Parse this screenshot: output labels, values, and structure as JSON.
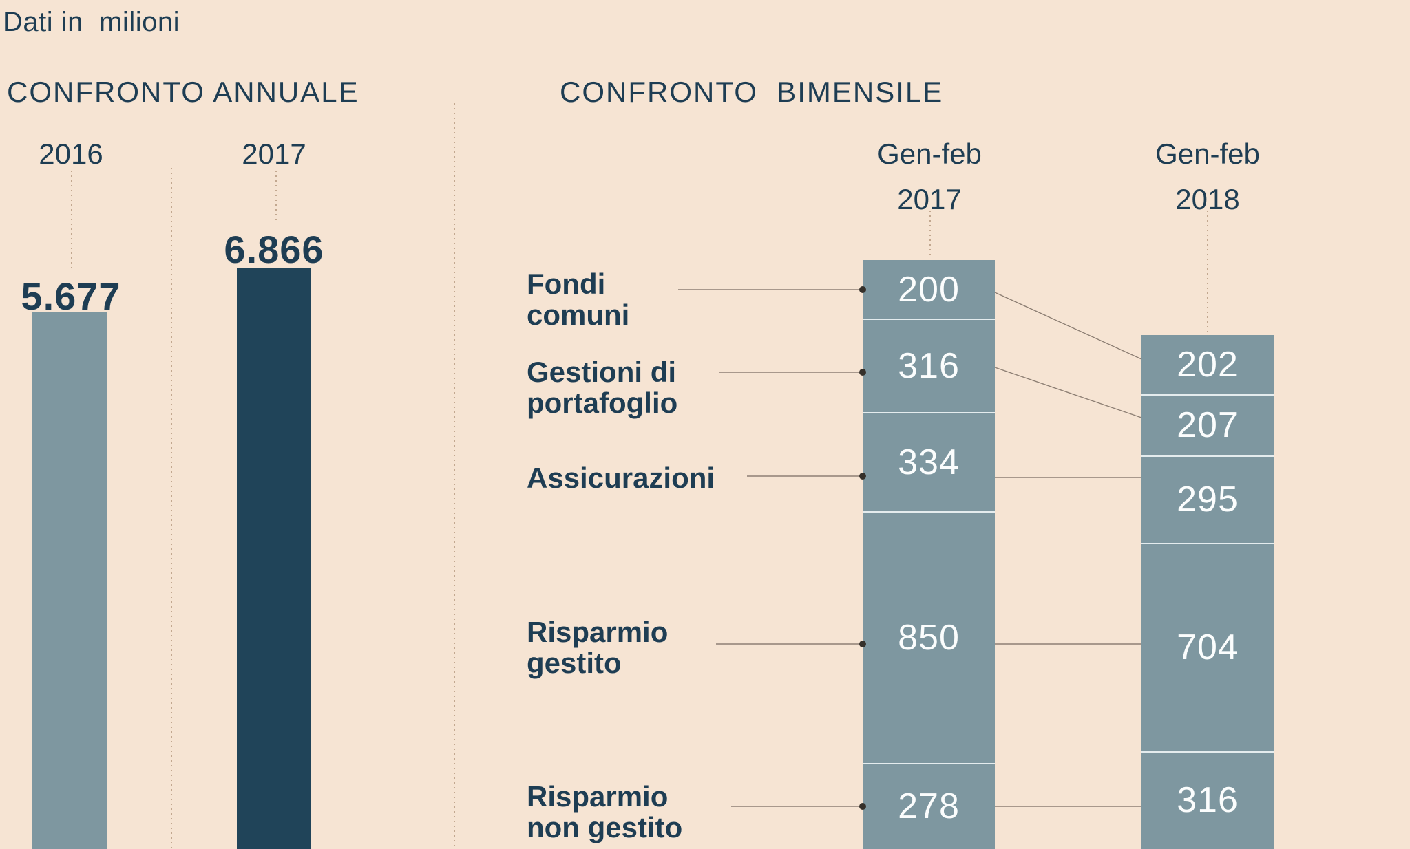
{
  "ui": {
    "note": "Dati in  milioni",
    "annual": {
      "title": "CONFRONTO ANNUALE"
    },
    "bimonthly": {
      "title": "CONFRONTO  BIMENSILE"
    }
  },
  "colors": {
    "background": "#f6e4d3",
    "navy_text": "#1e3d53",
    "bar_light": "#7e97a0",
    "bar_dark": "#204459",
    "segment_fill": "#7e97a0",
    "segment_value_text": "#fbfdfd",
    "leader_line": "#8d7f74",
    "leader_dot": "#35302a",
    "dotted_guide": "#c2a78f",
    "segment_gap_line": "#e4ecee"
  },
  "chart_data": [
    {
      "type": "bar",
      "title": "CONFRONTO ANNUALE",
      "unit_note": "Dati in  milioni",
      "categories": [
        "2016",
        "2017"
      ],
      "values": [
        5677,
        6866
      ],
      "value_labels": [
        "5.677",
        "6.866"
      ],
      "bar_color_keys": [
        "bar_light",
        "bar_dark"
      ],
      "grid": "dotted vertical guides",
      "baseline_visible": false
    },
    {
      "type": "bar",
      "variant": "stacked",
      "title": "CONFRONTO  BIMENSILE",
      "column_headers": [
        [
          "Gen-feb",
          "2017"
        ],
        [
          "Gen-feb",
          "2018"
        ]
      ],
      "segment_labels": [
        "Fondi comuni",
        "Gestioni di portafoglio",
        "Assicurazioni",
        "Risparmio gestito",
        "Risparmio non gestito"
      ],
      "segment_label_lines": [
        [
          "Fondi",
          "comuni"
        ],
        [
          "Gestioni di",
          "portafoglio"
        ],
        [
          "Assicurazioni"
        ],
        [
          "Risparmio",
          "gestito"
        ],
        [
          "Risparmio",
          "non gestito"
        ]
      ],
      "series": [
        {
          "name": "Gen-feb 2017",
          "values": [
            200,
            316,
            334,
            850,
            278
          ],
          "total": 1978
        },
        {
          "name": "Gen-feb 2018",
          "values": [
            202,
            207,
            295,
            704,
            316
          ],
          "total": 1724
        }
      ],
      "value_labels": [
        [
          "200",
          "316",
          "334",
          "850",
          "278"
        ],
        [
          "202",
          "207",
          "295",
          "704",
          "316"
        ]
      ],
      "legend_position": "none",
      "connectors_between_columns": true
    }
  ]
}
